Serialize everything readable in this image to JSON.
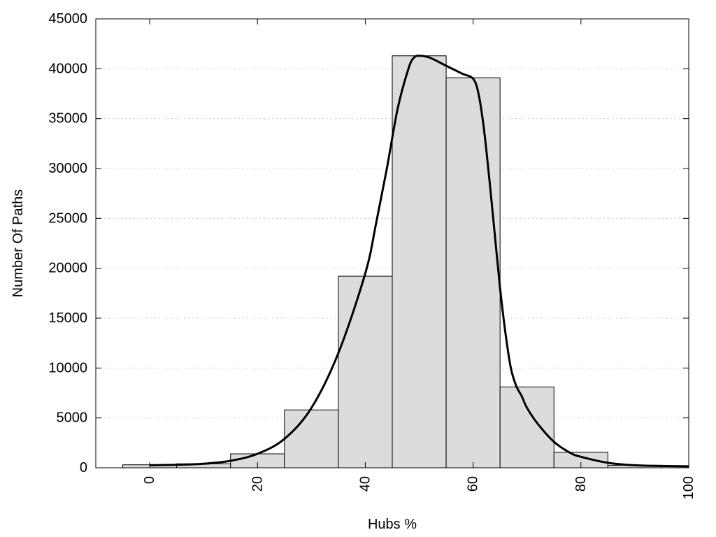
{
  "chart_data": {
    "type": "bar",
    "xlabel": "Hubs %",
    "ylabel": "Number Of Paths",
    "xlim": [
      -10,
      100
    ],
    "ylim": [
      0,
      45000
    ],
    "grid": true,
    "x_ticks": [
      0,
      20,
      40,
      60,
      80,
      100
    ],
    "y_ticks": [
      0,
      5000,
      10000,
      15000,
      20000,
      25000,
      30000,
      35000,
      40000,
      45000
    ],
    "bins": [
      {
        "start": -5,
        "end": 5,
        "value": 300
      },
      {
        "start": 5,
        "end": 15,
        "value": 400
      },
      {
        "start": 15,
        "end": 25,
        "value": 1400
      },
      {
        "start": 25,
        "end": 35,
        "value": 5800
      },
      {
        "start": 35,
        "end": 45,
        "value": 19200
      },
      {
        "start": 45,
        "end": 55,
        "value": 41300
      },
      {
        "start": 55,
        "end": 65,
        "value": 39100
      },
      {
        "start": 65,
        "end": 75,
        "value": 8100
      },
      {
        "start": 75,
        "end": 85,
        "value": 1550
      },
      {
        "start": 85,
        "end": 95,
        "value": 250
      },
      {
        "start": 95,
        "end": 100,
        "value": 150
      }
    ],
    "curve": {
      "x": [
        0,
        5,
        10,
        15,
        20,
        25,
        30,
        35,
        40,
        42,
        44,
        46,
        48,
        49,
        50,
        52,
        55,
        58,
        60,
        61,
        62,
        63,
        64,
        65,
        66,
        67,
        68,
        69,
        70,
        72,
        75,
        78,
        80,
        85,
        90,
        95,
        100
      ],
      "y": [
        250,
        300,
        400,
        700,
        1400,
        2900,
        6000,
        11500,
        19500,
        24500,
        30000,
        36000,
        40000,
        41100,
        41300,
        41100,
        40300,
        39500,
        39000,
        37500,
        34000,
        29000,
        23500,
        18000,
        13500,
        10000,
        8200,
        7200,
        6000,
        4400,
        2600,
        1500,
        1100,
        500,
        250,
        180,
        150
      ]
    }
  }
}
